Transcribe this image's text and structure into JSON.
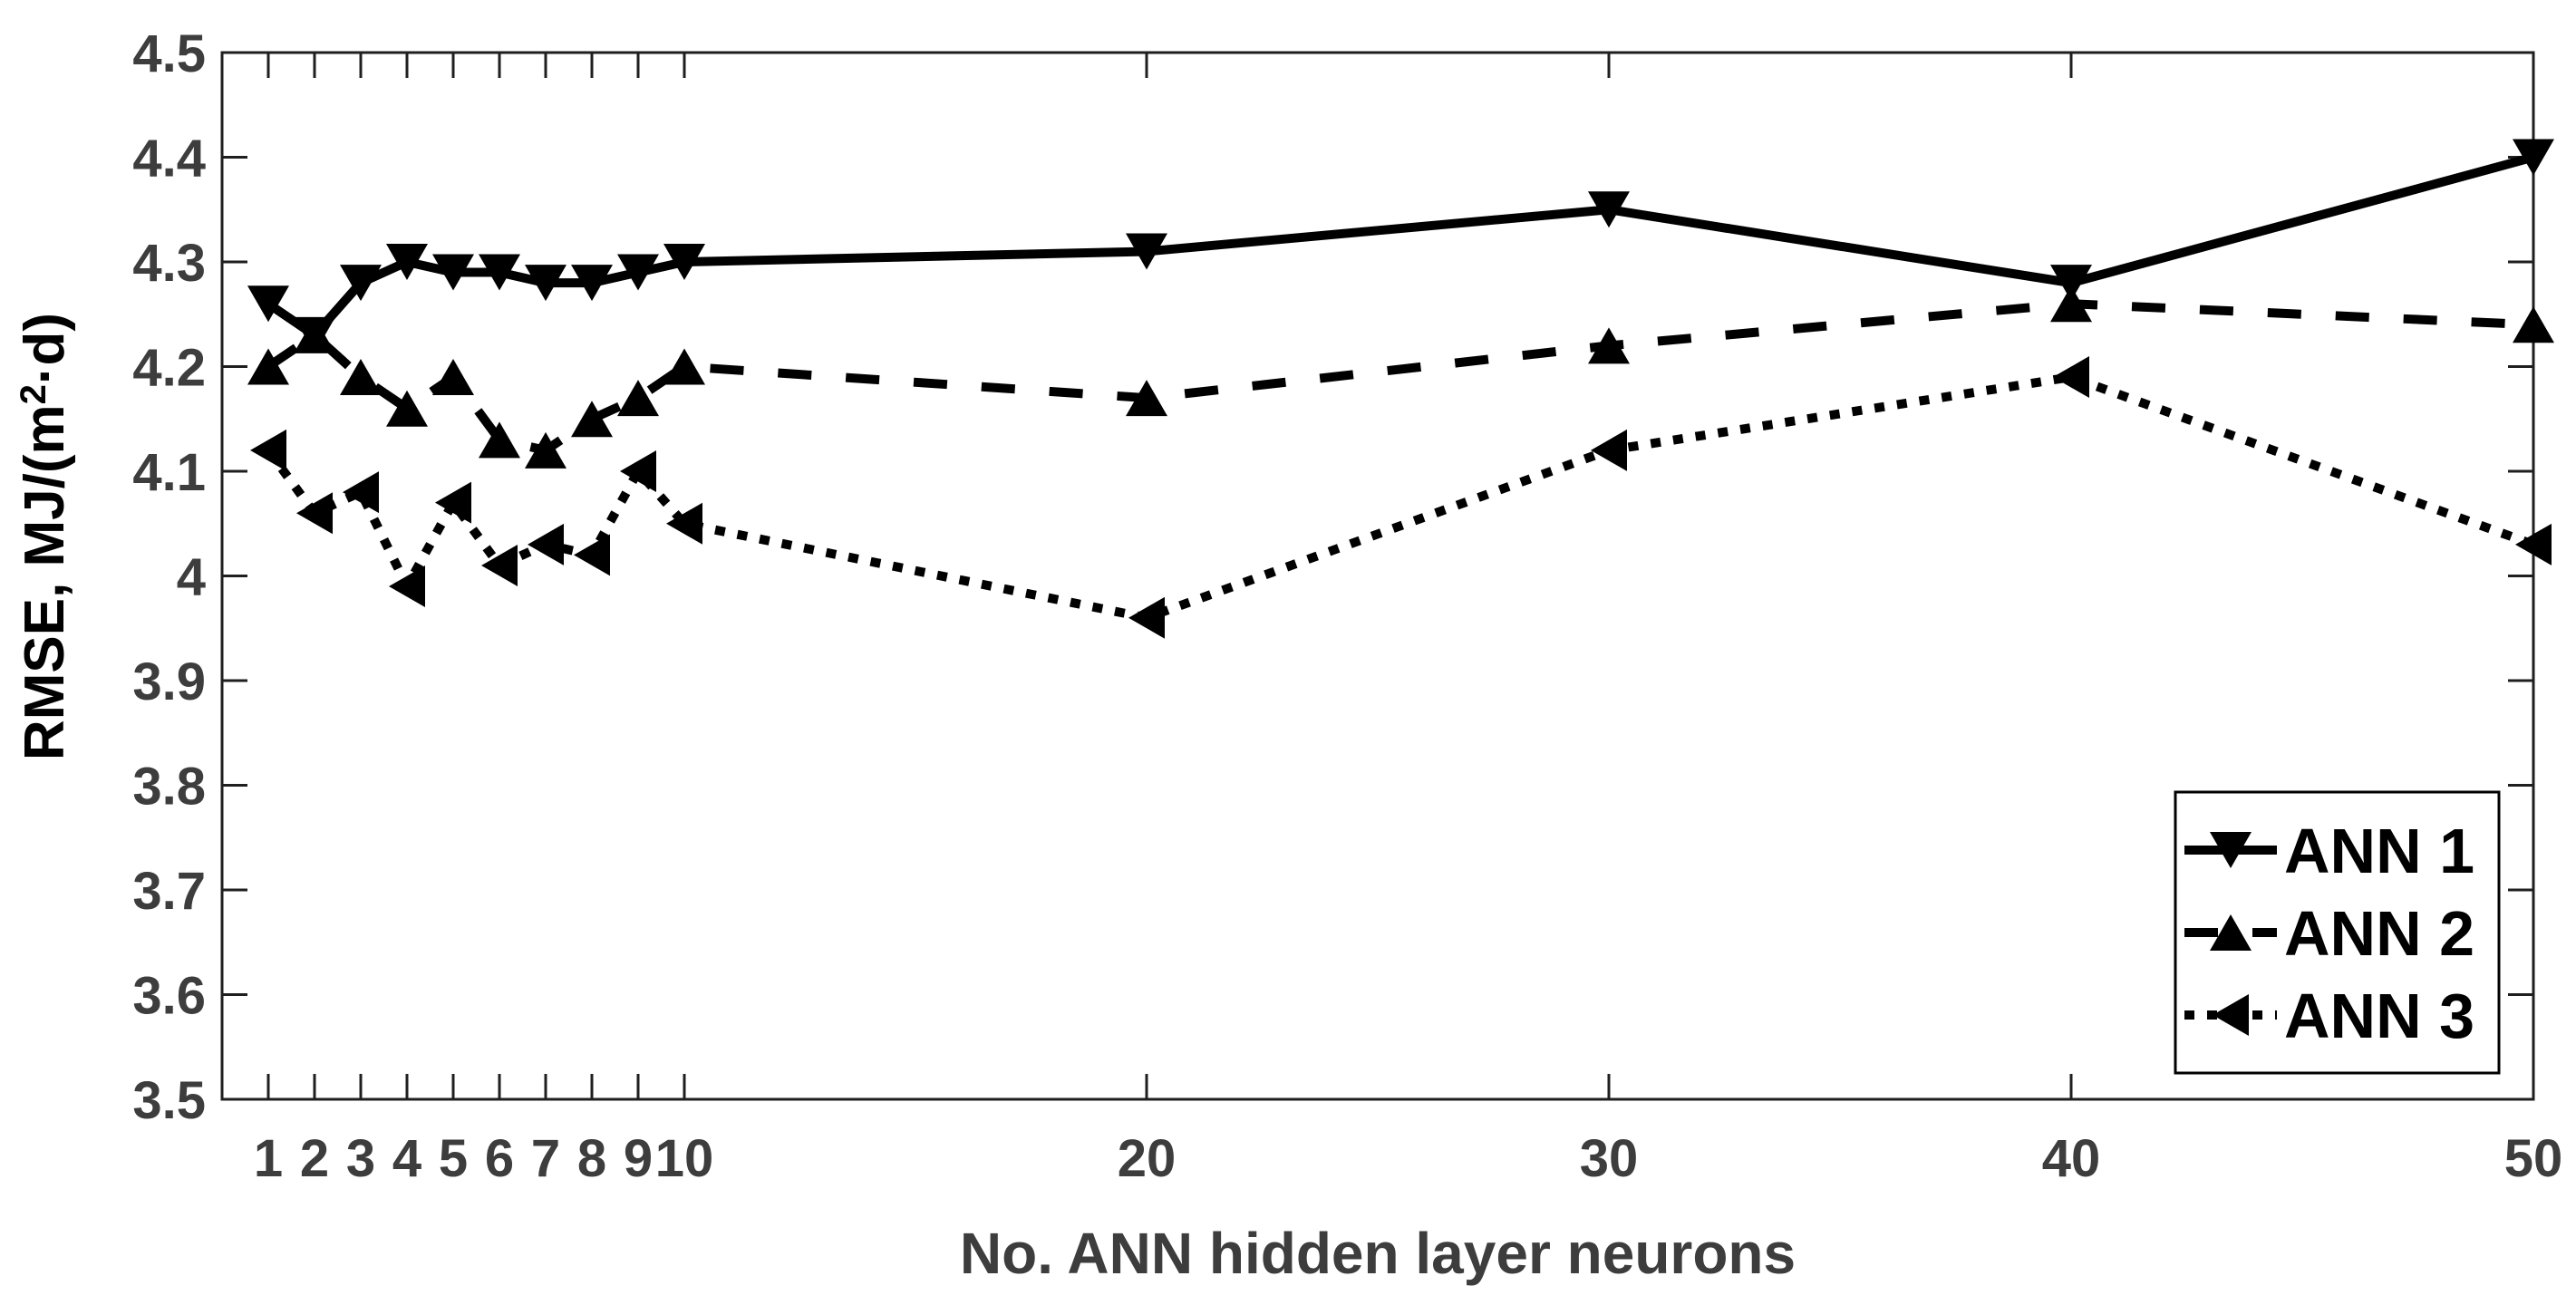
{
  "figure": {
    "background": "#ffffff",
    "axis_color": "#1f1f1f",
    "tick_label_color": "#3d3d3d",
    "xlabel_color": "#3d3d3d",
    "ylabel_color": "#000000",
    "series_color": "#000000",
    "legend_border_color": "#000000",
    "legend_background": "#ffffff"
  },
  "chart_data": {
    "type": "line",
    "title": "",
    "xlabel": "No. ANN hidden layer neurons",
    "ylabel": "RMSE, MJ/(m²·d)",
    "ylabel_parts": {
      "prefix": "RMSE, MJ/(m",
      "superscript": "2",
      "suffix": "·d)"
    },
    "xlim": [
      0,
      50
    ],
    "ylim": [
      3.5,
      4.5
    ],
    "grid": false,
    "box": true,
    "tick_direction": "in",
    "legend_position": "lower right",
    "x_ticks": [
      1,
      2,
      3,
      4,
      5,
      6,
      7,
      8,
      9,
      10,
      20,
      30,
      40,
      50
    ],
    "x_tick_labels": [
      "1",
      "2",
      "3",
      "4",
      "5",
      "6",
      "7",
      "8",
      "9",
      "10",
      "20",
      "30",
      "40",
      "50"
    ],
    "y_ticks": [
      3.5,
      3.6,
      3.7,
      3.8,
      3.9,
      4.0,
      4.1,
      4.2,
      4.3,
      4.4,
      4.5
    ],
    "y_tick_labels": [
      "3.5",
      "3.6",
      "3.7",
      "3.8",
      "3.9",
      "4",
      "4.1",
      "4.2",
      "4.3",
      "4.4",
      "4.5"
    ],
    "x": [
      1,
      2,
      3,
      4,
      5,
      6,
      7,
      8,
      9,
      10,
      20,
      30,
      40,
      50
    ],
    "series": [
      {
        "name": "ANN 1",
        "line_style": "solid",
        "marker": "triangle-down",
        "values": [
          4.26,
          4.23,
          4.28,
          4.3,
          4.29,
          4.29,
          4.28,
          4.28,
          4.29,
          4.3,
          4.31,
          4.35,
          4.28,
          4.4
        ]
      },
      {
        "name": "ANN 2",
        "line_style": "dashed",
        "marker": "triangle-up",
        "values": [
          4.2,
          4.23,
          4.19,
          4.16,
          4.19,
          4.13,
          4.12,
          4.15,
          4.17,
          4.2,
          4.17,
          4.22,
          4.26,
          4.24
        ]
      },
      {
        "name": "ANN 3",
        "line_style": "dotted",
        "marker": "triangle-left",
        "values": [
          4.12,
          4.06,
          4.08,
          3.99,
          4.07,
          4.01,
          4.03,
          4.02,
          4.1,
          4.05,
          3.96,
          4.12,
          4.19,
          4.03
        ]
      }
    ]
  }
}
